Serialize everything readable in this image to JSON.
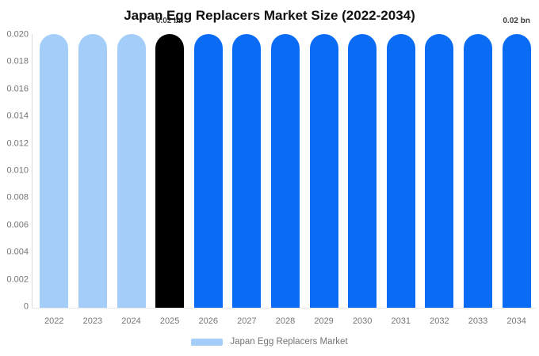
{
  "title": "Japan Egg Replacers Market Size (2022-2034)",
  "chart_data": {
    "type": "bar",
    "title": "Japan Egg Replacers Market Size (2022-2034)",
    "categories": [
      "2022",
      "2023",
      "2024",
      "2025",
      "2026",
      "2027",
      "2028",
      "2029",
      "2030",
      "2031",
      "2032",
      "2033",
      "2034"
    ],
    "series": [
      {
        "name": "Japan Egg Replacers Market",
        "values": [
          0.02,
          0.02,
          0.02,
          0.02,
          0.02,
          0.02,
          0.02,
          0.02,
          0.02,
          0.02,
          0.02,
          0.02,
          0.02
        ]
      }
    ],
    "unit": "bn",
    "xlabel": "",
    "ylabel": "",
    "ylim": [
      0,
      0.02
    ],
    "yticks": [
      "0.020",
      "0.018",
      "0.016",
      "0.014",
      "0.012",
      "0.010",
      "0.008",
      "0.006",
      "0.004",
      "0.002",
      "0"
    ],
    "grid": "none",
    "legend_position": "bottom",
    "data_labels": [
      "",
      "",
      "",
      "0.02 bn",
      "",
      "",
      "",
      "",
      "",
      "",
      "",
      "",
      "0.02 bn"
    ],
    "bar_colors": [
      "#A4CDFA",
      "#A4CDFA",
      "#A4CDFA",
      "#000000",
      "#0A6CF5",
      "#0A6CF5",
      "#0A6CF5",
      "#0A6CF5",
      "#0A6CF5",
      "#0A6CF5",
      "#0A6CF5",
      "#0A6CF5",
      "#0A6CF5"
    ]
  },
  "legend": {
    "label": "Japan Egg Replacers Market",
    "swatch_color": "#A4CDFA"
  },
  "colors": {
    "historical_bar": "#A4CDFA",
    "highlight_bar": "#000000",
    "forecast_bar": "#0A6CF5",
    "axis_line": "#DCDCDC",
    "baseline": "#E8E8E8",
    "tick_text": "#757575",
    "value_label_text": "#3D3D3D",
    "title_text": "#111111",
    "background": "#FFFFFF"
  }
}
